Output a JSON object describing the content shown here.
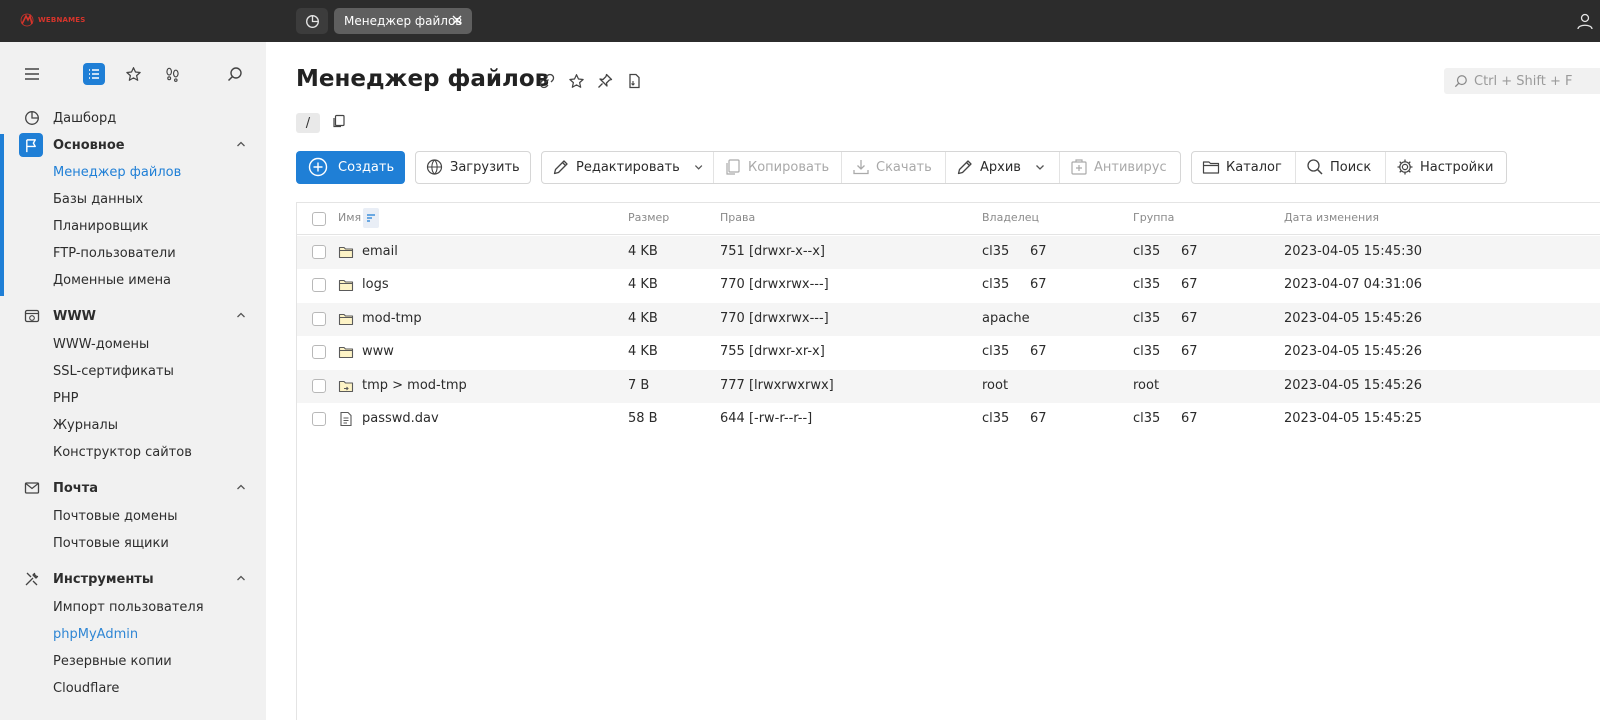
{
  "topbar": {
    "logo_text": "WEBNAMES",
    "tab_label": "Менеджер файлов"
  },
  "sidebar": {
    "sections": [
      {
        "label": "Дашборд"
      },
      {
        "label": "Основное",
        "items": [
          "Менеджер файлов",
          "Базы данных",
          "Планировщик",
          "FTP-пользователи",
          "Доменные имена"
        ]
      },
      {
        "label": "WWW",
        "items": [
          "WWW-домены",
          "SSL-сертификаты",
          "PHP",
          "Журналы",
          "Конструктор сайтов"
        ]
      },
      {
        "label": "Почта",
        "items": [
          "Почтовые домены",
          "Почтовые ящики"
        ]
      },
      {
        "label": "Инструменты",
        "items": [
          "Импорт пользователя",
          "phpMyAdmin",
          "Резервные копии",
          "Cloudflare"
        ]
      }
    ]
  },
  "main": {
    "title": "Менеджер файлов",
    "search_placeholder": "Ctrl + Shift + F",
    "path": "/",
    "toolbar": {
      "create": "Создать",
      "upload": "Загрузить",
      "edit": "Редактировать",
      "copy": "Копировать",
      "download": "Скачать",
      "archive": "Архив",
      "antivirus": "Антивирус",
      "folder": "Каталог",
      "search": "Поиск",
      "settings": "Настройки"
    },
    "columns": [
      "Имя",
      "Размер",
      "Права",
      "Владелец",
      "Группа",
      "Дата изменения"
    ],
    "rows": [
      {
        "name": "email",
        "size": "4 KB",
        "rights": "751 [drwxr-x--x]",
        "owner": "cl35     67",
        "group": "cl35     67",
        "date": "2023-04-05 15:45:30",
        "icon": "folder-icon"
      },
      {
        "name": "logs",
        "size": "4 KB",
        "rights": "770 [drwxrwx---]",
        "owner": "cl35     67",
        "group": "cl35     67",
        "date": "2023-04-07 04:31:06",
        "icon": "folder-icon"
      },
      {
        "name": "mod-tmp",
        "size": "4 KB",
        "rights": "770 [drwxrwx---]",
        "owner": "apache",
        "group": "cl35     67",
        "date": "2023-04-05 15:45:26",
        "icon": "folder-icon"
      },
      {
        "name": "www",
        "size": "4 KB",
        "rights": "755 [drwxr-xr-x]",
        "owner": "cl35     67",
        "group": "cl35     67",
        "date": "2023-04-05 15:45:26",
        "icon": "folder-icon"
      },
      {
        "name": "tmp > mod-tmp",
        "size": "7 B",
        "rights": "777 [lrwxrwxrwx]",
        "owner": "root",
        "group": "root",
        "date": "2023-04-05 15:45:26",
        "icon": "folder-link-icon"
      },
      {
        "name": "passwd.dav",
        "size": "58 B",
        "rights": "644 [-rw-r--r--]",
        "owner": "cl35     67",
        "group": "cl35     67",
        "date": "2023-04-05 15:45:25",
        "icon": "file-icon"
      }
    ]
  },
  "colors": {
    "accent": "#1f7fd6",
    "topbar": "#2c2c2c",
    "sidebar": "#f1f1f1",
    "logo": "#d8342b"
  }
}
